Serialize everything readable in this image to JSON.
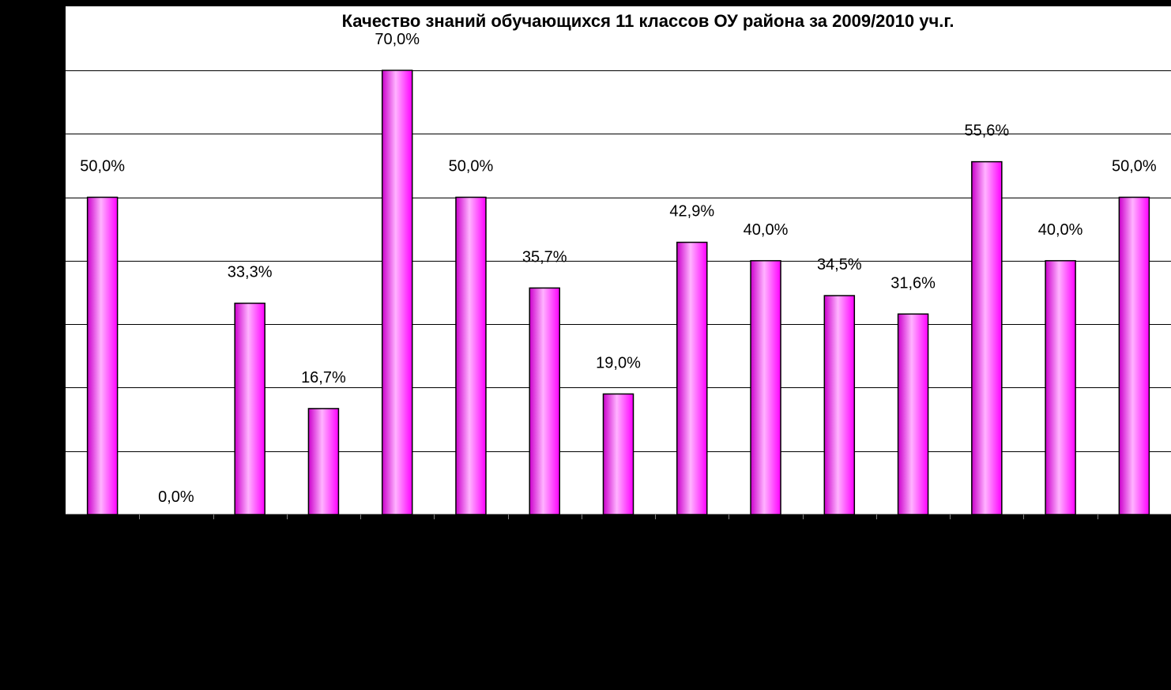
{
  "chart_data": {
    "type": "bar",
    "title": "Качество знаний обучающихся 11 классов ОУ района за  2009/2010 уч.г.",
    "xlabel": "",
    "ylabel": "",
    "ylim": [
      0,
      70
    ],
    "grid_step": 10,
    "grid": true,
    "legend": "none",
    "categories": [
      "",
      "",
      "",
      "",
      "",
      "",
      "",
      "",
      "",
      "",
      "",
      "",
      "",
      "",
      ""
    ],
    "values": [
      50.0,
      0.0,
      33.3,
      16.7,
      70.0,
      50.0,
      35.7,
      19.0,
      42.9,
      40.0,
      34.5,
      31.6,
      55.6,
      40.0,
      50.0
    ],
    "data_labels": [
      "50,0%",
      "0,0%",
      "33,3%",
      "16,7%",
      "70,0%",
      "50,0%",
      "35,7%",
      "19,0%",
      "42,9%",
      "40,0%",
      "34,5%",
      "31,6%",
      "55,6%",
      "40,0%",
      "50,0%"
    ],
    "colors": {
      "bar_fill": "#FF00FF",
      "bar_highlight": "#FFB3FF",
      "bar_shade": "#CC00CC",
      "bar_stroke": "#000000",
      "plot_background": "#FFFFFF",
      "gridline": "#000000",
      "page_background": "#000000",
      "text": "#000000"
    }
  }
}
